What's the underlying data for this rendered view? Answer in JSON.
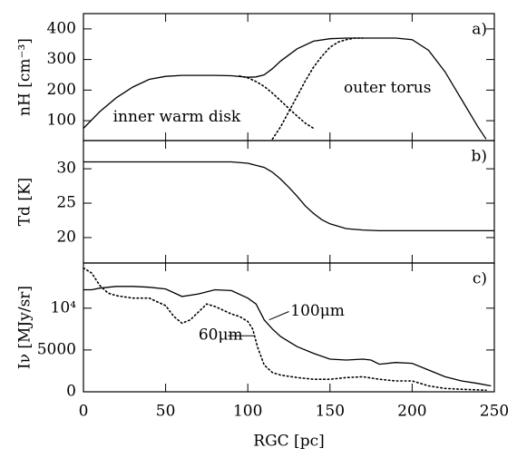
{
  "chart_data": [
    {
      "type": "line",
      "label": "a)",
      "ylabel": "nH [cm⁻³]",
      "xlim": [
        0,
        250
      ],
      "xticks": [
        0,
        50,
        100,
        150,
        200,
        250
      ],
      "ylim": [
        35,
        450
      ],
      "yticks": [
        100,
        200,
        300,
        400
      ],
      "series": [
        {
          "style": "solid",
          "color": "#000000",
          "x": [
            0,
            10,
            20,
            30,
            40,
            50,
            60,
            70,
            80,
            90,
            100,
            105,
            110,
            115,
            120,
            130,
            140,
            150,
            160,
            170,
            180,
            190,
            200,
            210,
            220,
            230,
            240,
            245
          ],
          "values": [
            75,
            130,
            175,
            210,
            235,
            245,
            248,
            248,
            248,
            247,
            242,
            243,
            250,
            270,
            295,
            335,
            360,
            368,
            370,
            370,
            370,
            370,
            365,
            330,
            260,
            170,
            80,
            40
          ]
        },
        {
          "name": "inner warm disk",
          "style": "dotted",
          "color": "#000000",
          "x": [
            95,
            100,
            105,
            110,
            115,
            120,
            125,
            130,
            135,
            140
          ],
          "values": [
            246,
            240,
            228,
            212,
            190,
            165,
            140,
            115,
            92,
            75
          ]
        },
        {
          "name": "outer torus",
          "style": "dotted",
          "color": "#000000",
          "x": [
            115,
            120,
            125,
            130,
            135,
            140,
            145,
            150,
            155,
            160,
            165,
            170
          ],
          "values": [
            40,
            80,
            130,
            180,
            230,
            275,
            310,
            340,
            357,
            365,
            370,
            370
          ]
        }
      ]
    },
    {
      "type": "line",
      "label": "b)",
      "ylabel": "Td [K]",
      "xlim": [
        0,
        250
      ],
      "xticks": [
        0,
        50,
        100,
        150,
        200,
        250
      ],
      "ylim": [
        16.3,
        34.1
      ],
      "yticks": [
        20,
        25,
        30
      ],
      "series": [
        {
          "style": "solid",
          "color": "#000000",
          "x": [
            0,
            50,
            90,
            100,
            110,
            115,
            120,
            125,
            130,
            135,
            140,
            145,
            150,
            160,
            170,
            180,
            250
          ],
          "values": [
            31,
            31,
            31,
            30.8,
            30.2,
            29.5,
            28.5,
            27.3,
            26,
            24.6,
            23.5,
            22.6,
            22,
            21.3,
            21.1,
            21,
            21
          ]
        }
      ]
    },
    {
      "type": "line",
      "label": "c)",
      "ylabel": "Iν [MJy/sr]",
      "xlabel": "RGC [pc]",
      "xlim": [
        0,
        250
      ],
      "xticks": [
        0,
        50,
        100,
        150,
        200,
        250
      ],
      "ylim": [
        0,
        15400
      ],
      "yticks": [
        0,
        5000,
        {
          "value": 10000,
          "label": "10⁴"
        }
      ],
      "series": [
        {
          "name": "100μm",
          "style": "solid",
          "color": "#000000",
          "x": [
            0,
            5,
            10,
            20,
            30,
            40,
            50,
            60,
            70,
            80,
            90,
            100,
            105,
            110,
            115,
            120,
            125,
            130,
            140,
            150,
            160,
            170,
            175,
            180,
            190,
            200,
            210,
            220,
            230,
            240,
            248
          ],
          "values": [
            12200,
            12200,
            12400,
            12600,
            12600,
            12500,
            12300,
            11400,
            11700,
            12200,
            12100,
            11200,
            10500,
            8600,
            7500,
            6600,
            6000,
            5400,
            4600,
            3900,
            3800,
            3900,
            3800,
            3300,
            3500,
            3400,
            2600,
            1800,
            1300,
            1000,
            700
          ]
        },
        {
          "name": "60μm",
          "style": "dotted",
          "color": "#000000",
          "x": [
            0,
            5,
            10,
            15,
            20,
            30,
            40,
            50,
            55,
            60,
            65,
            75,
            80,
            90,
            95,
            100,
            103,
            106,
            110,
            115,
            120,
            130,
            140,
            150,
            160,
            170,
            180,
            190,
            200,
            210,
            220,
            230,
            245
          ],
          "values": [
            14800,
            14200,
            12700,
            11800,
            11500,
            11200,
            11200,
            10300,
            9000,
            8200,
            8600,
            10500,
            10200,
            9300,
            9000,
            8400,
            7500,
            5300,
            3200,
            2300,
            2000,
            1700,
            1500,
            1500,
            1700,
            1800,
            1500,
            1300,
            1300,
            700,
            400,
            300,
            200
          ]
        }
      ]
    }
  ]
}
